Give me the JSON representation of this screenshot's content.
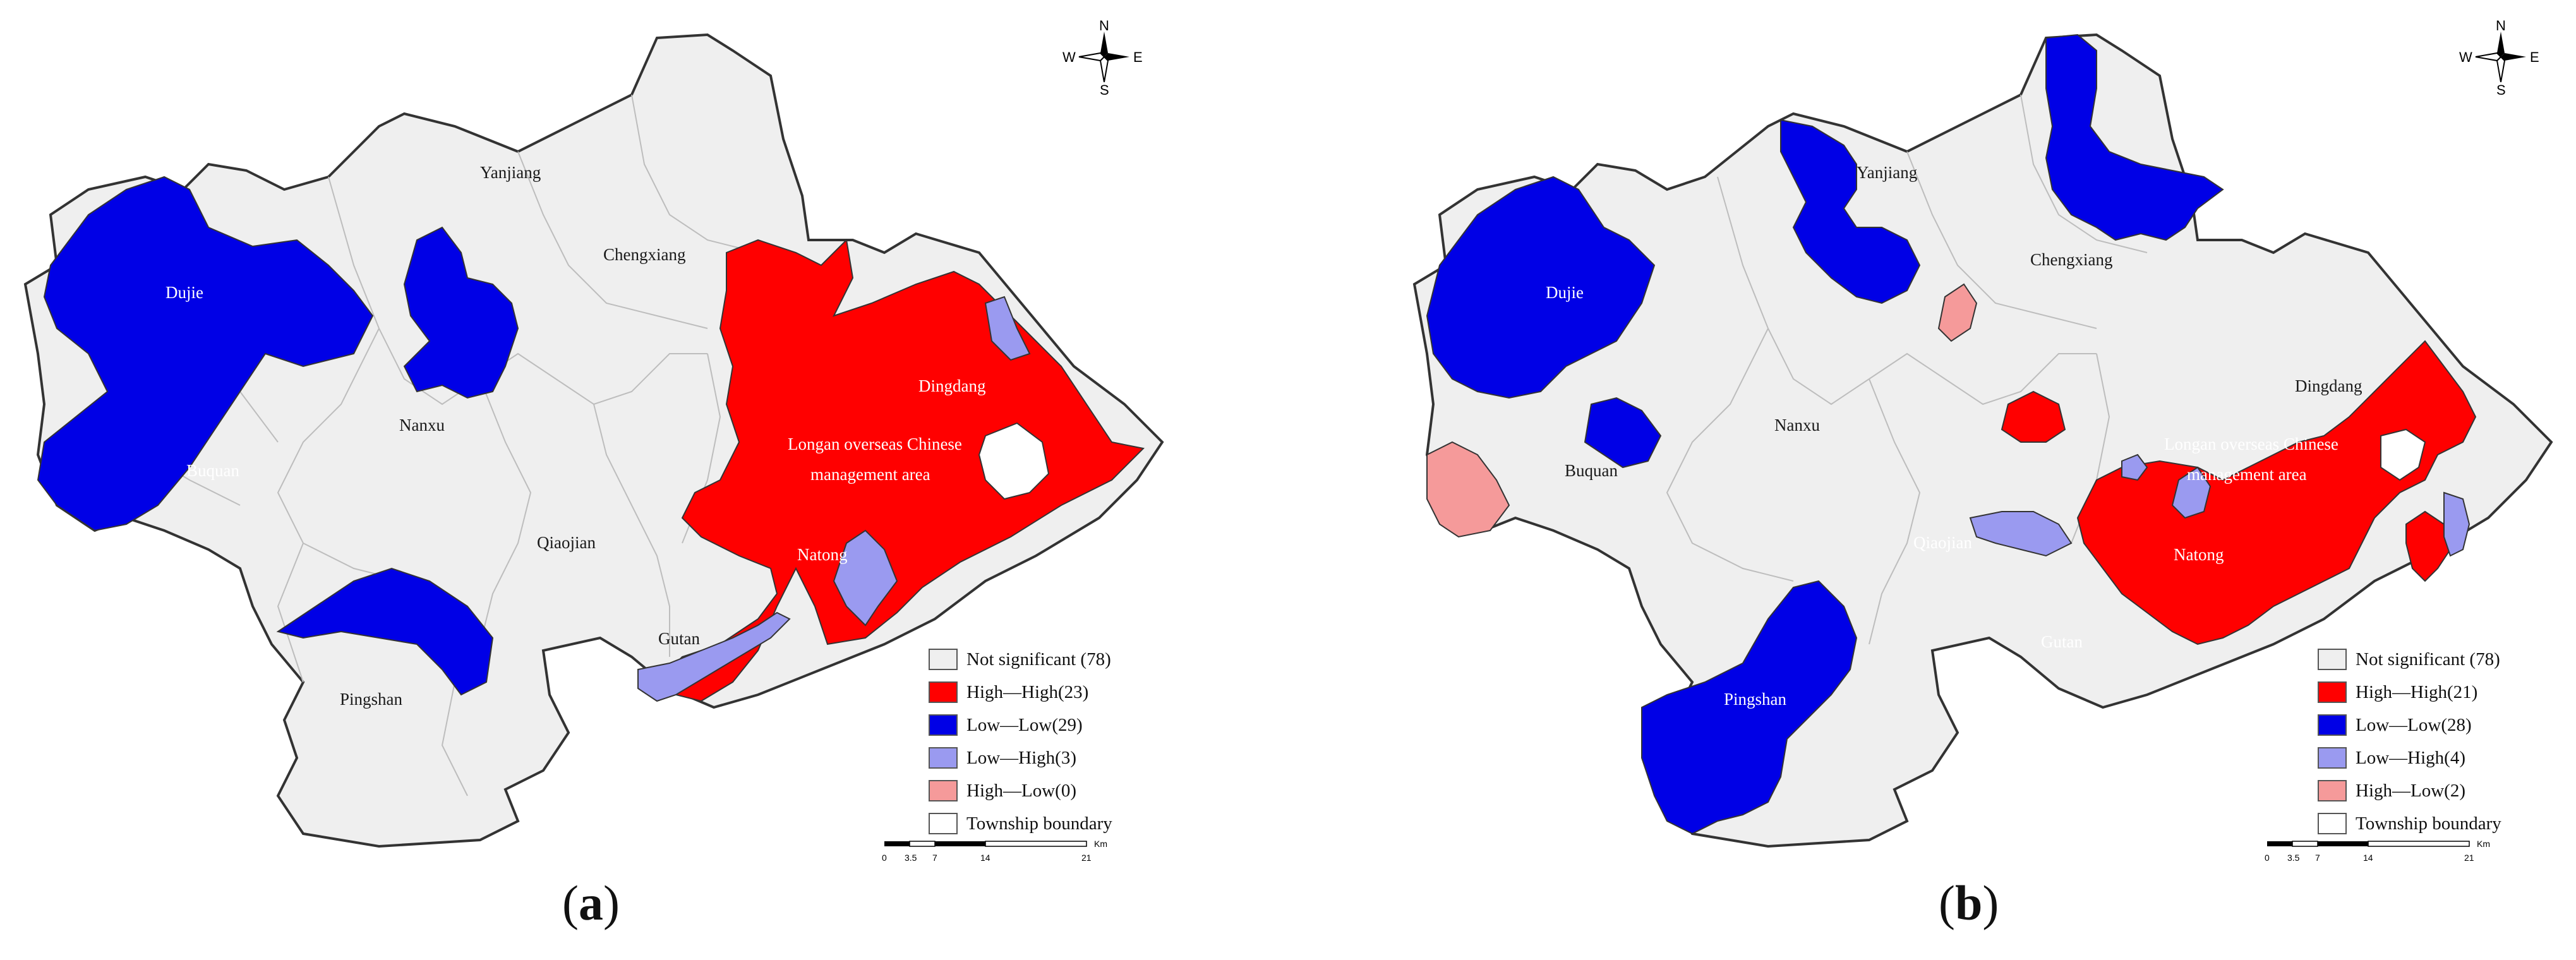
{
  "compass_labels": {
    "n": "N",
    "s": "S",
    "w": "W",
    "e": "E"
  },
  "scale": {
    "ticks": [
      "0",
      "3.5",
      "7",
      "14",
      "21"
    ],
    "unit": "Km"
  },
  "colors": {
    "not_significant": "#efefef",
    "high_high": "#ff0000",
    "low_low": "#0000e6",
    "low_high": "#9a9af0",
    "high_low": "#f59a9a",
    "boundary": "#333333"
  },
  "panels": [
    {
      "label_open": "(",
      "label_letter": "a",
      "label_close": ")",
      "legend": [
        {
          "key": "not_significant",
          "label": "Not significant (78)"
        },
        {
          "key": "high_high",
          "label": "High—High(23)"
        },
        {
          "key": "low_low",
          "label": "Low—Low(29)"
        },
        {
          "key": "low_high",
          "label": "Low—High(3)"
        },
        {
          "key": "high_low",
          "label": "High—Low(0)"
        },
        {
          "key": "boundary",
          "label": "Township boundary"
        }
      ],
      "towns": {
        "yanjiang": "Yanjiang",
        "chengxiang": "Chengxiang",
        "dujie": "Dujie",
        "nanxu": "Nanxu",
        "dingdang": "Dingdang",
        "longan_1": "Longan overseas Chinese",
        "longan_2": "management area",
        "buquan": "Buquan",
        "qiaojian": "Qiaojian",
        "natong": "Natong",
        "gutan": "Gutan",
        "pingshan": "Pingshan"
      }
    },
    {
      "label_open": "(",
      "label_letter": "b",
      "label_close": ")",
      "legend": [
        {
          "key": "not_significant",
          "label": "Not significant (78)"
        },
        {
          "key": "high_high",
          "label": "High—High(21)"
        },
        {
          "key": "low_low",
          "label": "Low—Low(28)"
        },
        {
          "key": "low_high",
          "label": "Low—High(4)"
        },
        {
          "key": "high_low",
          "label": "High—Low(2)"
        },
        {
          "key": "boundary",
          "label": "Township boundary"
        }
      ],
      "towns": {
        "yanjiang": "Yanjiang",
        "chengxiang": "Chengxiang",
        "dujie": "Dujie",
        "nanxu": "Nanxu",
        "dingdang": "Dingdang",
        "longan_1": "Longan overseas Chinese",
        "longan_2": "management area",
        "buquan": "Buquan",
        "qiaojian": "Qiaojian",
        "natong": "Natong",
        "gutan": "Gutan",
        "pingshan": "Pingshan"
      }
    }
  ]
}
